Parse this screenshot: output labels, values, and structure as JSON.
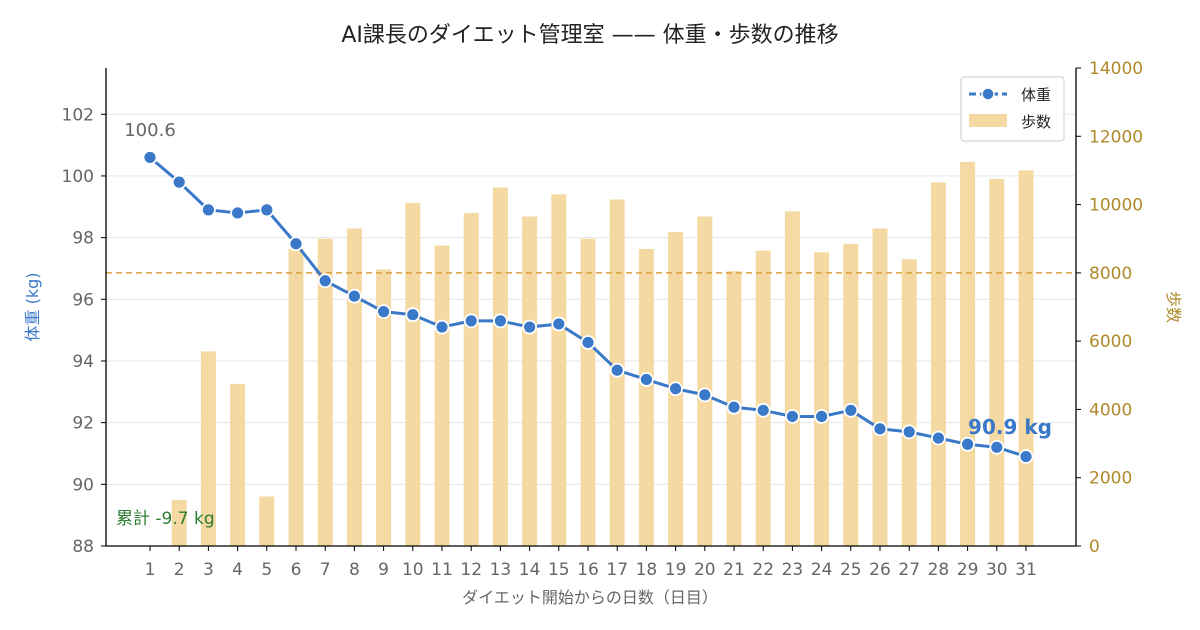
{
  "chart_data": {
    "type": "line",
    "title": "AI課長のダイエット管理室 —— 体重・歩数の推移",
    "xlabel": "ダイエット開始からの日数（日目）",
    "ylabel": "体重 (kg)",
    "y2label": "歩数",
    "categories": [
      1,
      2,
      3,
      4,
      5,
      6,
      7,
      8,
      9,
      10,
      11,
      12,
      13,
      14,
      15,
      16,
      17,
      18,
      19,
      20,
      21,
      22,
      23,
      24,
      25,
      26,
      27,
      28,
      29,
      30,
      31
    ],
    "series": [
      {
        "name": "体重",
        "kind": "line",
        "axis": "left",
        "color": "#3a78c8",
        "values": [
          100.6,
          99.8,
          98.9,
          98.8,
          98.9,
          97.8,
          96.6,
          96.1,
          95.6,
          95.5,
          95.1,
          95.3,
          95.3,
          95.1,
          95.2,
          94.6,
          93.7,
          93.4,
          93.1,
          92.9,
          92.5,
          92.4,
          92.2,
          92.2,
          92.4,
          91.8,
          91.7,
          91.5,
          91.3,
          91.2,
          90.9
        ]
      },
      {
        "name": "歩数",
        "kind": "bar",
        "axis": "right",
        "color": "#f5d9a2",
        "values": [
          null,
          1350,
          5700,
          4750,
          1450,
          8700,
          9000,
          9300,
          8100,
          10050,
          8800,
          9750,
          10500,
          9650,
          10300,
          9000,
          10150,
          8700,
          9200,
          9650,
          8050,
          8650,
          9800,
          8600,
          8850,
          9300,
          8400,
          10650,
          11250,
          10750,
          11000
        ]
      }
    ],
    "ylim": [
      88,
      103.5
    ],
    "y2lim": [
      0,
      14000
    ],
    "yticks": [
      88,
      90,
      92,
      94,
      96,
      98,
      100,
      102
    ],
    "y2ticks": [
      0,
      2000,
      4000,
      6000,
      8000,
      10000,
      12000,
      14000
    ],
    "reference_line": {
      "axis": "right",
      "value": 8000,
      "color": "#d9a040"
    },
    "grid": true,
    "legend": "top-right",
    "annotations": {
      "start_label": "100.6",
      "end_label": "90.9 kg",
      "total_label": "累計 -9.7 kg"
    },
    "colors": {
      "weight": "#3a78c8",
      "steps": "#f5d9a2",
      "steps_axis": "#b08a2a",
      "reference": "#d9a040",
      "total": "#2e7d32",
      "tick": "#666666"
    }
  }
}
